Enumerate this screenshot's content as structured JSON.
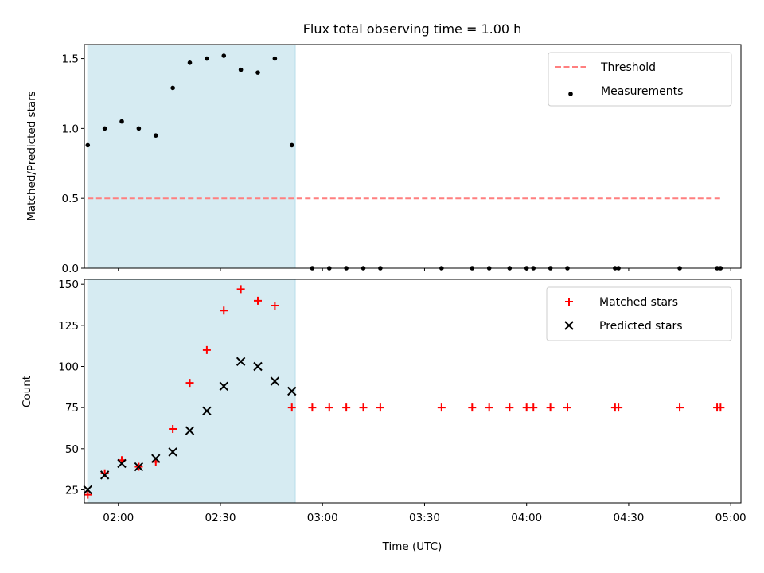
{
  "chart_data": [
    {
      "type": "scatter",
      "title": "Flux total observing time = 1.00 h",
      "xlabel": "",
      "ylabel": "Matched/Predicted stars",
      "xlim": [
        "01:50",
        "05:03"
      ],
      "ylim": [
        0,
        1.6
      ],
      "yticks": [
        0.0,
        0.5,
        1.0,
        1.5
      ],
      "ytick_labels": [
        "0.0",
        "0.5",
        "1.0",
        "1.5"
      ],
      "xticks": [
        "02:00",
        "02:30",
        "03:00",
        "03:30",
        "04:00",
        "04:30",
        "05:00"
      ],
      "shaded_span": {
        "start": "01:51",
        "end": "02:52",
        "color": "#add8e6"
      },
      "legend_position": "top-right",
      "series": [
        {
          "name": "Threshold",
          "kind": "dashed-line",
          "color": "#ff7f7f",
          "x": [
            "01:51",
            "04:57"
          ],
          "y": [
            0.5,
            0.5
          ]
        },
        {
          "name": "Measurements",
          "kind": "dot",
          "color": "#000000",
          "x": [
            "01:51",
            "01:56",
            "02:01",
            "02:06",
            "02:11",
            "02:16",
            "02:21",
            "02:26",
            "02:31",
            "02:36",
            "02:41",
            "02:46",
            "02:51",
            "02:57",
            "03:02",
            "03:07",
            "03:12",
            "03:17",
            "03:35",
            "03:44",
            "03:49",
            "03:55",
            "04:00",
            "04:02",
            "04:07",
            "04:12",
            "04:26",
            "04:27",
            "04:45",
            "04:56",
            "04:57"
          ],
          "y": [
            0.88,
            1.0,
            1.05,
            1.0,
            0.95,
            1.29,
            1.47,
            1.5,
            1.52,
            1.42,
            1.4,
            1.5,
            0.88,
            0,
            0,
            0,
            0,
            0,
            0,
            0,
            0,
            0,
            0,
            0,
            0,
            0,
            0,
            0,
            0,
            0,
            0
          ]
        }
      ]
    },
    {
      "type": "scatter",
      "title": "",
      "xlabel": "Time (UTC)",
      "ylabel": "Count",
      "xlim": [
        "01:50",
        "05:03"
      ],
      "ylim": [
        17,
        153
      ],
      "yticks": [
        25,
        50,
        75,
        100,
        125,
        150
      ],
      "ytick_labels": [
        "25",
        "50",
        "75",
        "100",
        "125",
        "150"
      ],
      "xticks": [
        "02:00",
        "02:30",
        "03:00",
        "03:30",
        "04:00",
        "04:30",
        "05:00"
      ],
      "shaded_span": {
        "start": "01:51",
        "end": "02:52",
        "color": "#add8e6"
      },
      "legend_position": "top-right",
      "series": [
        {
          "name": "Matched stars",
          "kind": "plus",
          "color": "#ff0000",
          "x": [
            "01:51",
            "01:56",
            "02:01",
            "02:06",
            "02:11",
            "02:16",
            "02:21",
            "02:26",
            "02:31",
            "02:36",
            "02:41",
            "02:46",
            "02:51",
            "02:57",
            "03:02",
            "03:07",
            "03:12",
            "03:17",
            "03:35",
            "03:44",
            "03:49",
            "03:55",
            "04:00",
            "04:02",
            "04:07",
            "04:12",
            "04:26",
            "04:27",
            "04:45",
            "04:56",
            "04:57"
          ],
          "y": [
            22,
            35,
            43,
            39,
            42,
            62,
            90,
            110,
            134,
            147,
            140,
            137,
            75,
            75,
            75,
            75,
            75,
            75,
            75,
            75,
            75,
            75,
            75,
            75,
            75,
            75,
            75,
            75,
            75,
            75,
            75
          ]
        },
        {
          "name": "Predicted stars",
          "kind": "x",
          "color": "#000000",
          "x": [
            "01:51",
            "01:56",
            "02:01",
            "02:06",
            "02:11",
            "02:16",
            "02:21",
            "02:26",
            "02:31",
            "02:36",
            "02:41",
            "02:46",
            "02:51"
          ],
          "y": [
            25,
            34,
            41,
            39,
            44,
            48,
            61,
            73,
            88,
            103,
            100,
            91,
            85
          ]
        }
      ]
    }
  ]
}
